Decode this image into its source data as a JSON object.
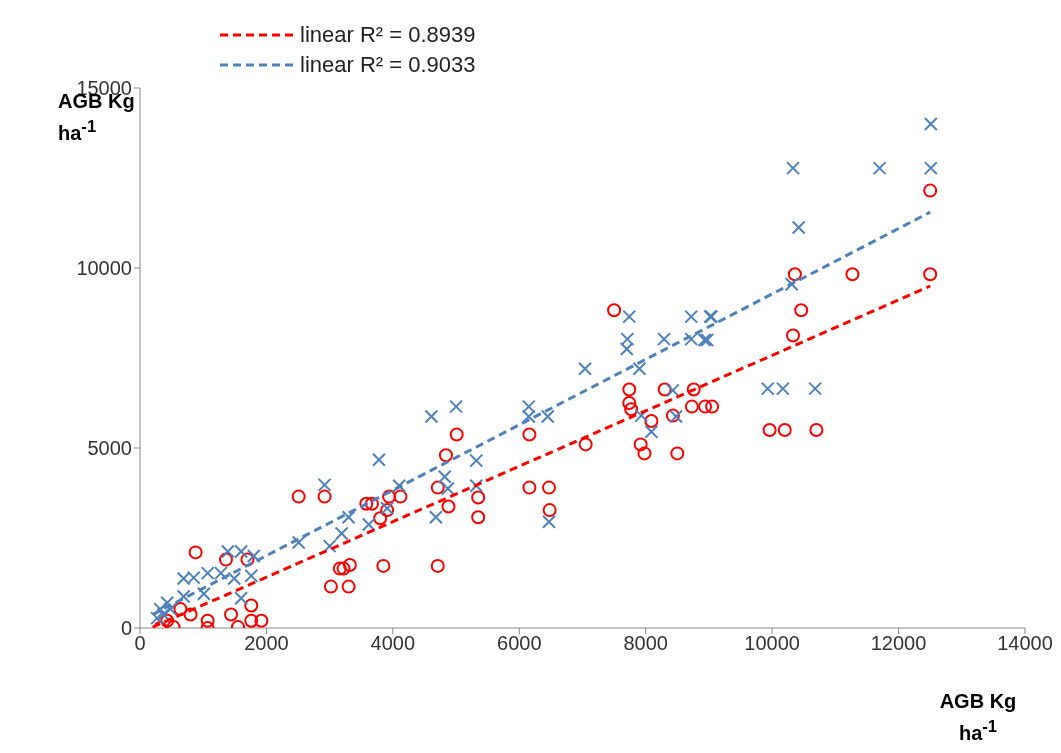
{
  "chart_data": {
    "type": "scatter",
    "xlabel": "AGB Kg ha$^{-1}$",
    "ylabel": "AGB Kg ha$^{-1}$",
    "xlim": [
      0,
      14000
    ],
    "xticks": [
      0,
      2000,
      4000,
      6000,
      8000,
      10000,
      12000,
      14000
    ],
    "ylim": [
      0,
      15000
    ],
    "yticks": [
      0,
      5000,
      10000,
      15000
    ],
    "grid": false,
    "legend": "top",
    "series": [
      {
        "color": "#ff0000",
        "marker": "circle",
        "x": [
          12500,
          12500,
          11270,
          10360,
          10460,
          10330,
          9960,
          10200,
          10700,
          7500,
          7740,
          8300,
          8760,
          7740,
          7770,
          8730,
          8940,
          9050,
          8090,
          8430,
          7050,
          7920,
          7980,
          8500,
          5010,
          6160,
          4840,
          4710,
          6160,
          6470,
          4880,
          5350,
          5350,
          6480,
          2510,
          2920,
          3580,
          3670,
          3940,
          4120,
          3910,
          3800,
          880,
          3160,
          3220,
          3320,
          3850,
          4710,
          3020,
          3300,
          1360,
          1700,
          1760,
          430,
          800,
          1070,
          1070,
          1440,
          1550,
          1760,
          1920,
          530,
          320,
          640
        ],
        "values": [
          12150,
          9825,
          9825,
          9825,
          8825,
          8125,
          5500,
          5500,
          5500,
          8825,
          6625,
          6625,
          6625,
          6250,
          6075,
          6150,
          6150,
          6150,
          5750,
          5900,
          5100,
          5100,
          4850,
          4850,
          5375,
          5375,
          4800,
          3900,
          3900,
          3900,
          3375,
          3625,
          3075,
          3275,
          3650,
          3650,
          3450,
          3450,
          3650,
          3650,
          3275,
          3050,
          2100,
          1650,
          1650,
          1750,
          1725,
          1725,
          1150,
          1150,
          1900,
          1900,
          625,
          200,
          375,
          200,
          0,
          375,
          25,
          200,
          200,
          25,
          0,
          525
        ]
      },
      {
        "color": "#4f81bd",
        "marker": "cross",
        "x": [
          12510,
          12510,
          10330,
          11700,
          10420,
          10310,
          9930,
          10170,
          10680,
          9040,
          8970,
          7740,
          8720,
          9020,
          7710,
          7700,
          8290,
          8720,
          8930,
          7040,
          7900,
          8430,
          7930,
          8480,
          8090,
          4610,
          5000,
          6150,
          6150,
          6450,
          5320,
          4820,
          4870,
          5320,
          4680,
          6470,
          3780,
          2920,
          4100,
          2510,
          3190,
          3000,
          3300,
          3620,
          3910,
          1390,
          1600,
          1800,
          1760,
          690,
          850,
          1070,
          1280,
          1490,
          1010,
          690,
          1600,
          430,
          320,
          270,
          480,
          370
        ],
        "values": [
          14000,
          12775,
          12775,
          12775,
          11125,
          9550,
          6650,
          6650,
          6650,
          8650,
          8000,
          8650,
          8650,
          8650,
          8025,
          7750,
          8025,
          8025,
          8000,
          7200,
          7200,
          6600,
          5900,
          5875,
          5450,
          5875,
          6150,
          6150,
          5875,
          5875,
          4650,
          4200,
          3875,
          3950,
          3075,
          2950,
          4675,
          3975,
          3950,
          2375,
          2625,
          2275,
          3075,
          2875,
          3325,
          2125,
          2125,
          2000,
          1450,
          1375,
          1400,
          1525,
          1525,
          1375,
          950,
          875,
          825,
          700,
          525,
          275,
          525,
          375
        ]
      },
      {
        "type": "line",
        "name": "linear R² = 0.8939",
        "color": "#ff0000",
        "line_style": "dashed",
        "marker": "none",
        "x": [
          200,
          12500
        ],
        "values": [
          25,
          9500
        ]
      },
      {
        "type": "line",
        "name": "linear R² = 0.9033",
        "color": "#4f81bd",
        "line_style": "dashed",
        "marker": "none",
        "x": [
          200,
          12500
        ],
        "values": [
          375,
          11550
        ]
      }
    ]
  }
}
